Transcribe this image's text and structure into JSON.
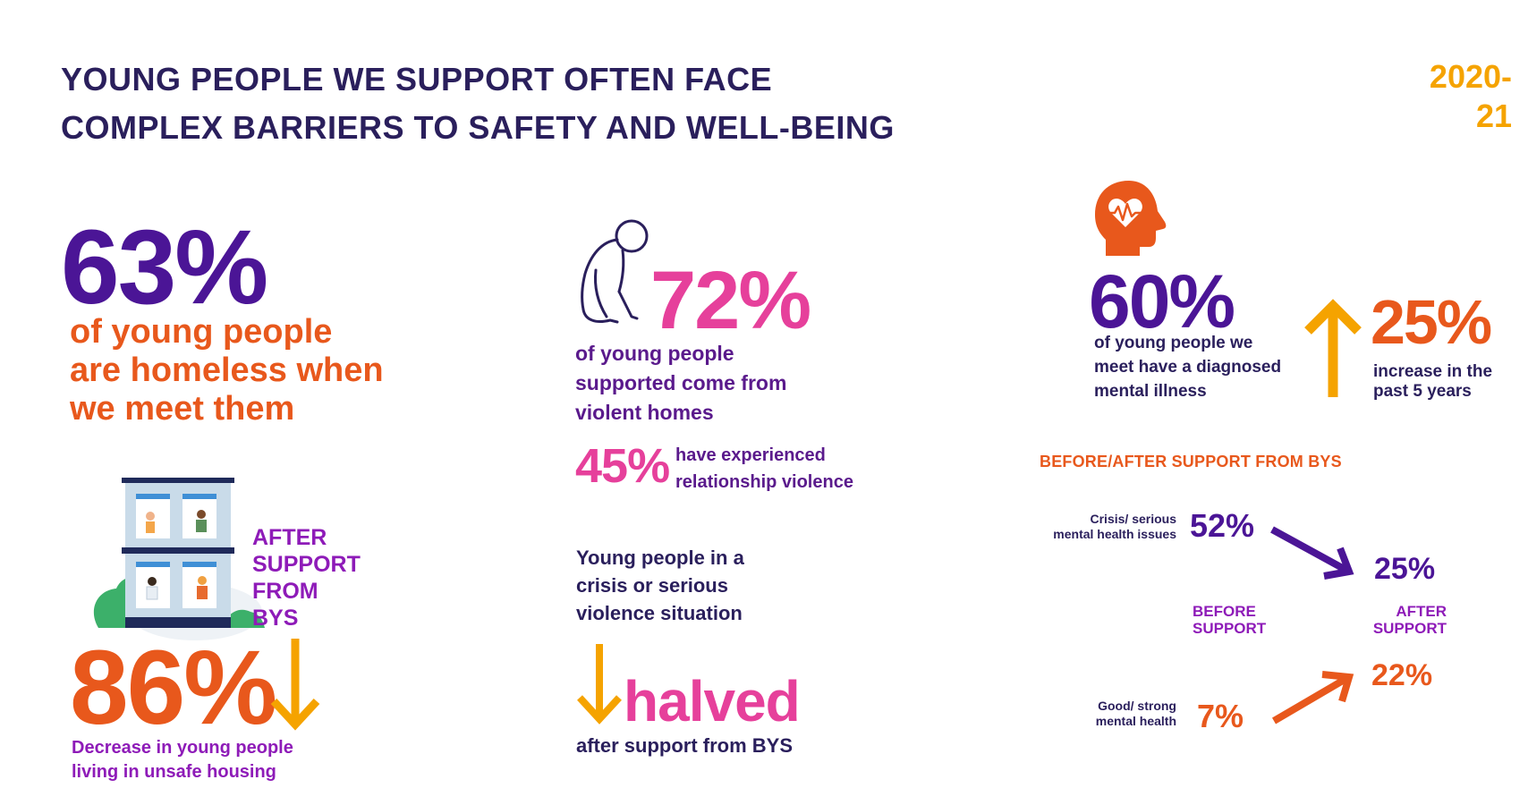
{
  "header": {
    "title_line1": "YOUNG PEOPLE WE SUPPORT OFTEN FACE",
    "title_line2": "COMPLEX BARRIERS TO SAFETY AND WELL-BEING",
    "year": "2020-21"
  },
  "homeless": {
    "value": "63%",
    "line1": "of young people",
    "line2": "are homeless when",
    "line3": "we meet them"
  },
  "unsafe_housing": {
    "after_line1": "AFTER",
    "after_line2": "SUPPORT",
    "after_line3": "FROM",
    "after_line4": "BYS",
    "value": "86%",
    "line1": "Decrease in young people",
    "line2": "living in unsafe housing"
  },
  "violence": {
    "value": "72%",
    "line1": "of young people",
    "line2": "supported come from",
    "line3": "violent homes",
    "relationship_value": "45%",
    "relationship_line1": "have experienced",
    "relationship_line2": "relationship violence"
  },
  "crisis": {
    "line1": "Young people in a",
    "line2": "crisis or serious",
    "line3": "violence situation",
    "halved": "halved",
    "after_text": "after support from BYS"
  },
  "mental_health": {
    "value": "60%",
    "line1": "of young people we",
    "line2": "meet have a diagnosed",
    "line3": "mental illness",
    "increase_value": "25%",
    "increase_line1": "increase in the",
    "increase_line2": "past 5 years"
  },
  "before_after": {
    "title": "BEFORE/AFTER SUPPORT FROM BYS",
    "crisis_label_line1": "Crisis/ serious",
    "crisis_label_line2": "mental health issues",
    "crisis_before": "52%",
    "crisis_after": "25%",
    "before_line1": "BEFORE",
    "before_line2": "SUPPORT",
    "after_line1": "AFTER",
    "after_line2": "SUPPORT",
    "good_label_line1": "Good/ strong",
    "good_label_line2": "mental health",
    "good_before": "7%",
    "good_after": "22%"
  },
  "colors": {
    "navy": "#2a1f5c",
    "purple": "#4b1596",
    "magenta_purple": "#8e1bb8",
    "orange": "#e8581c",
    "amber": "#f5a300",
    "pink": "#e6409b"
  },
  "icons": [
    "building-illustration",
    "kneeling-person-icon",
    "head-heart-icon",
    "arrow-down-icon",
    "arrow-up-icon"
  ]
}
